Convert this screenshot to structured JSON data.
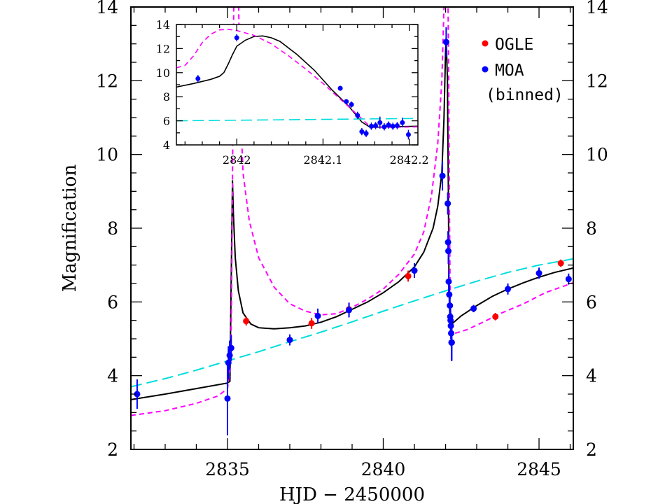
{
  "chart_data": [
    {
      "type": "scatter",
      "xlabel": "HJD − 2450000",
      "ylabel": "Magnification",
      "xlim": [
        2831.9,
        2846.1
      ],
      "ylim": [
        2,
        14
      ],
      "x_ticks": [
        2835,
        2840,
        2845
      ],
      "y_ticks": [
        2,
        4,
        6,
        8,
        10,
        12,
        14
      ],
      "right_axis_labels": true,
      "legend": {
        "placement": "top-right",
        "entries": [
          {
            "label": "OGLE",
            "color": "#ff0000"
          },
          {
            "label": "MOA",
            "color": "#0000ff"
          },
          {
            "label": "(binned)",
            "color": ""
          }
        ]
      },
      "series": [
        {
          "name": "OGLE",
          "color": "#ff0000",
          "points": [
            {
              "x": 2835.6,
              "y": 5.48,
              "err": 0.12
            },
            {
              "x": 2837.7,
              "y": 5.42,
              "err": 0.15
            },
            {
              "x": 2838.9,
              "y": 5.8,
              "err": 0.18
            },
            {
              "x": 2840.8,
              "y": 6.7,
              "err": 0.15
            },
            {
              "x": 2843.6,
              "y": 5.6,
              "err": 0.1
            },
            {
              "x": 2845.7,
              "y": 7.05,
              "err": 0.1
            }
          ]
        },
        {
          "name": "MOA",
          "color": "#0000ff",
          "points": [
            {
              "x": 2832.1,
              "y": 3.5,
              "err": 0.4
            },
            {
              "x": 2835.0,
              "y": 3.38,
              "err": 1.0
            },
            {
              "x": 2835.03,
              "y": 4.35,
              "err": 0.45
            },
            {
              "x": 2835.07,
              "y": 4.55,
              "err": 0.4
            },
            {
              "x": 2835.12,
              "y": 4.75,
              "err": 0.35
            },
            {
              "x": 2837.0,
              "y": 4.97,
              "err": 0.15
            },
            {
              "x": 2837.9,
              "y": 5.62,
              "err": 0.2
            },
            {
              "x": 2838.9,
              "y": 5.78,
              "err": 0.2
            },
            {
              "x": 2841.0,
              "y": 6.85,
              "err": 0.2
            },
            {
              "x": 2841.9,
              "y": 9.42,
              "err": 0.4
            },
            {
              "x": 2842.02,
              "y": 13.05,
              "err": 0.4
            },
            {
              "x": 2842.07,
              "y": 8.67,
              "err": 0.3
            },
            {
              "x": 2842.08,
              "y": 7.62,
              "err": 0.3
            },
            {
              "x": 2842.09,
              "y": 7.38,
              "err": 0.35
            },
            {
              "x": 2842.1,
              "y": 6.55,
              "err": 0.3
            },
            {
              "x": 2842.12,
              "y": 6.2,
              "err": 0.3
            },
            {
              "x": 2842.14,
              "y": 5.9,
              "err": 0.3
            },
            {
              "x": 2842.15,
              "y": 5.6,
              "err": 0.3
            },
            {
              "x": 2842.16,
              "y": 5.5,
              "err": 0.3
            },
            {
              "x": 2842.17,
              "y": 5.35,
              "err": 0.35
            },
            {
              "x": 2842.18,
              "y": 5.15,
              "err": 0.35
            },
            {
              "x": 2842.19,
              "y": 4.9,
              "err": 0.5
            },
            {
              "x": 2842.2,
              "y": 4.9,
              "err": 0.5
            },
            {
              "x": 2842.9,
              "y": 5.82,
              "err": 0.1
            },
            {
              "x": 2844.0,
              "y": 6.35,
              "err": 0.15
            },
            {
              "x": 2845.0,
              "y": 6.78,
              "err": 0.15
            },
            {
              "x": 2845.95,
              "y": 6.62,
              "err": 0.15
            }
          ]
        }
      ],
      "model_curves": [
        {
          "color": "#000000",
          "style": "solid",
          "points": [
            [
              2831.9,
              3.35
            ],
            [
              2833.0,
              3.5
            ],
            [
              2834.0,
              3.65
            ],
            [
              2835.0,
              3.8
            ],
            [
              2835.08,
              3.85
            ],
            [
              2835.1,
              5.2
            ],
            [
              2835.14,
              8.0
            ],
            [
              2835.16,
              9.3
            ],
            [
              2835.19,
              8.4
            ],
            [
              2835.25,
              7.2
            ],
            [
              2835.35,
              6.3
            ],
            [
              2835.5,
              5.7
            ],
            [
              2835.75,
              5.4
            ],
            [
              2836.0,
              5.3
            ],
            [
              2836.5,
              5.27
            ],
            [
              2837.0,
              5.3
            ],
            [
              2837.5,
              5.35
            ],
            [
              2838.0,
              5.45
            ],
            [
              2838.5,
              5.6
            ],
            [
              2839.0,
              5.8
            ],
            [
              2839.5,
              6.0
            ],
            [
              2840.0,
              6.25
            ],
            [
              2840.5,
              6.55
            ],
            [
              2841.0,
              6.95
            ],
            [
              2841.3,
              7.35
            ],
            [
              2841.6,
              8.0
            ],
            [
              2841.75,
              8.6
            ],
            [
              2841.88,
              9.5
            ],
            [
              2841.95,
              11.0
            ],
            [
              2842.0,
              12.8
            ],
            [
              2842.02,
              13.15
            ],
            [
              2842.06,
              12.0
            ],
            [
              2842.09,
              9.0
            ],
            [
              2842.11,
              6.5
            ],
            [
              2842.13,
              5.8
            ],
            [
              2842.14,
              5.55
            ],
            [
              2842.2,
              5.4
            ],
            [
              2842.5,
              5.62
            ],
            [
              2843.0,
              5.9
            ],
            [
              2843.5,
              6.15
            ],
            [
              2844.0,
              6.35
            ],
            [
              2844.5,
              6.52
            ],
            [
              2845.0,
              6.67
            ],
            [
              2845.5,
              6.8
            ],
            [
              2846.1,
              6.92
            ]
          ]
        },
        {
          "color": "#ff00ff",
          "style": "dashed",
          "points": [
            [
              2831.9,
              2.92
            ],
            [
              2833.0,
              3.05
            ],
            [
              2834.0,
              3.25
            ],
            [
              2834.7,
              3.45
            ],
            [
              2835.0,
              3.65
            ],
            [
              2835.1,
              4.3
            ],
            [
              2835.13,
              6.0
            ],
            [
              2835.15,
              8.0
            ],
            [
              2835.18,
              11.5
            ],
            [
              2835.2,
              14.0
            ],
            [
              2835.36,
              14.0
            ],
            [
              2835.4,
              11.5
            ],
            [
              2835.5,
              9.5
            ],
            [
              2835.7,
              8.2
            ],
            [
              2836.0,
              7.2
            ],
            [
              2836.5,
              6.4
            ],
            [
              2837.0,
              5.95
            ],
            [
              2837.5,
              5.75
            ],
            [
              2838.0,
              5.65
            ],
            [
              2838.5,
              5.68
            ],
            [
              2839.0,
              5.85
            ],
            [
              2839.5,
              6.08
            ],
            [
              2840.0,
              6.35
            ],
            [
              2840.5,
              6.75
            ],
            [
              2841.0,
              7.3
            ],
            [
              2841.3,
              7.9
            ],
            [
              2841.55,
              8.9
            ],
            [
              2841.75,
              10.3
            ],
            [
              2841.88,
              12.0
            ],
            [
              2841.95,
              14.0
            ],
            [
              2842.08,
              14.0
            ],
            [
              2842.1,
              12.0
            ],
            [
              2842.12,
              9.0
            ],
            [
              2842.14,
              6.8
            ],
            [
              2842.16,
              5.5
            ],
            [
              2842.18,
              5.2
            ],
            [
              2842.3,
              5.15
            ],
            [
              2842.7,
              5.25
            ],
            [
              2843.2,
              5.45
            ],
            [
              2843.8,
              5.7
            ],
            [
              2844.5,
              5.95
            ],
            [
              2845.2,
              6.25
            ],
            [
              2846.1,
              6.52
            ]
          ]
        },
        {
          "color": "#00dddd",
          "style": "long-dashed",
          "points": [
            [
              2831.9,
              3.7
            ],
            [
              2833.0,
              3.92
            ],
            [
              2834.0,
              4.15
            ],
            [
              2835.0,
              4.4
            ],
            [
              2836.0,
              4.65
            ],
            [
              2837.0,
              4.92
            ],
            [
              2838.0,
              5.18
            ],
            [
              2839.0,
              5.46
            ],
            [
              2840.0,
              5.75
            ],
            [
              2841.0,
              6.03
            ],
            [
              2842.0,
              6.3
            ],
            [
              2843.0,
              6.56
            ],
            [
              2844.0,
              6.8
            ],
            [
              2845.0,
              7.0
            ],
            [
              2846.1,
              7.17
            ]
          ]
        }
      ]
    },
    {
      "type": "scatter",
      "placement": "inset-top-left",
      "xlim": [
        2841.93,
        2842.21
      ],
      "ylim": [
        4,
        14
      ],
      "x_ticks": [
        2842,
        2842.1,
        2842.2
      ],
      "y_ticks": [
        4,
        6,
        8,
        10,
        12,
        14
      ],
      "series": [
        {
          "name": "MOA",
          "color": "#0000ff",
          "points": [
            {
              "x": 2841.955,
              "y": 9.5,
              "err": 0.3
            },
            {
              "x": 2842.0,
              "y": 12.9,
              "err": 0.3
            },
            {
              "x": 2842.12,
              "y": 8.7,
              "err": 0.2
            },
            {
              "x": 2842.127,
              "y": 7.6,
              "err": 0.2
            },
            {
              "x": 2842.133,
              "y": 7.35,
              "err": 0.25
            },
            {
              "x": 2842.14,
              "y": 6.45,
              "err": 0.3
            },
            {
              "x": 2842.145,
              "y": 5.1,
              "err": 0.3
            },
            {
              "x": 2842.15,
              "y": 4.95,
              "err": 0.3
            },
            {
              "x": 2842.156,
              "y": 5.55,
              "err": 0.3
            },
            {
              "x": 2842.161,
              "y": 5.6,
              "err": 0.3
            },
            {
              "x": 2842.166,
              "y": 5.85,
              "err": 0.5
            },
            {
              "x": 2842.171,
              "y": 5.5,
              "err": 0.3
            },
            {
              "x": 2842.176,
              "y": 5.65,
              "err": 0.3
            },
            {
              "x": 2842.181,
              "y": 5.55,
              "err": 0.3
            },
            {
              "x": 2842.186,
              "y": 5.6,
              "err": 0.3
            },
            {
              "x": 2842.192,
              "y": 5.85,
              "err": 0.4
            },
            {
              "x": 2842.199,
              "y": 4.85,
              "err": 0.4
            }
          ]
        }
      ],
      "model_curves": [
        {
          "color": "#000000",
          "style": "solid",
          "points": [
            [
              2841.93,
              8.8
            ],
            [
              2841.95,
              9.1
            ],
            [
              2841.97,
              9.45
            ],
            [
              2841.98,
              9.7
            ],
            [
              2841.985,
              10.0
            ],
            [
              2841.99,
              10.7
            ],
            [
              2841.995,
              11.5
            ],
            [
              2842.0,
              12.2
            ],
            [
              2842.01,
              12.7
            ],
            [
              2842.02,
              13.0
            ],
            [
              2842.03,
              13.05
            ],
            [
              2842.04,
              12.9
            ],
            [
              2842.05,
              12.6
            ],
            [
              2842.07,
              11.5
            ],
            [
              2842.09,
              10.2
            ],
            [
              2842.11,
              8.6
            ],
            [
              2842.13,
              7.2
            ],
            [
              2842.145,
              5.9
            ],
            [
              2842.155,
              5.45
            ],
            [
              2842.175,
              5.5
            ],
            [
              2842.21,
              5.55
            ]
          ]
        },
        {
          "color": "#ff00ff",
          "style": "dashed",
          "points": [
            [
              2841.93,
              10.4
            ],
            [
              2841.94,
              10.6
            ],
            [
              2841.95,
              11.4
            ],
            [
              2841.96,
              12.5
            ],
            [
              2841.97,
              13.2
            ],
            [
              2841.98,
              13.55
            ],
            [
              2841.99,
              13.6
            ],
            [
              2842.0,
              13.5
            ],
            [
              2842.02,
              13.1
            ],
            [
              2842.04,
              12.4
            ],
            [
              2842.06,
              11.4
            ],
            [
              2842.08,
              10.3
            ],
            [
              2842.1,
              9.1
            ],
            [
              2842.12,
              7.8
            ],
            [
              2842.14,
              6.5
            ],
            [
              2842.155,
              5.5
            ],
            [
              2842.17,
              5.45
            ],
            [
              2842.21,
              5.5
            ]
          ]
        },
        {
          "color": "#00dddd",
          "style": "long-dashed",
          "points": [
            [
              2841.93,
              6.0
            ],
            [
              2842.21,
              6.2
            ]
          ]
        }
      ]
    }
  ]
}
